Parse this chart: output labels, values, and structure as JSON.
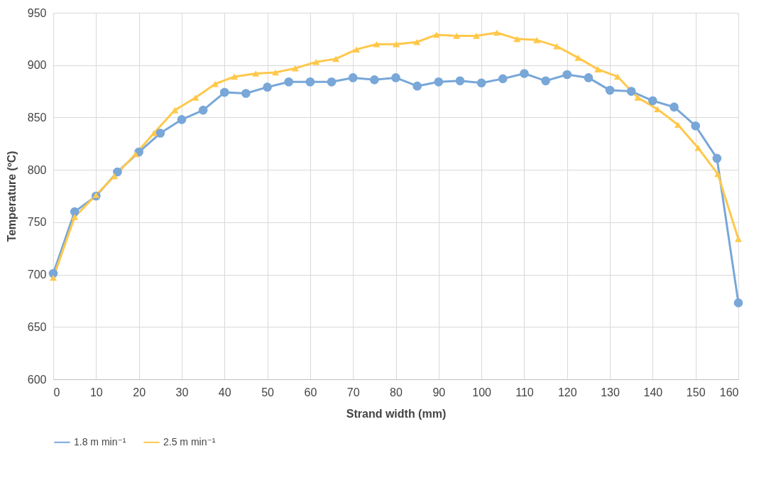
{
  "chart_data": {
    "type": "line",
    "xlabel": "Strand width (mm)",
    "ylabel": "Temperature (ºC)",
    "xlim": [
      0,
      160
    ],
    "xticks": [
      0,
      10,
      20,
      30,
      40,
      50,
      60,
      70,
      80,
      90,
      100,
      110,
      120,
      130,
      140,
      150,
      160
    ],
    "ylim": [
      600,
      950
    ],
    "yticks": [
      600,
      650,
      700,
      750,
      800,
      850,
      900,
      950
    ],
    "grid": true,
    "legend": "bottom",
    "series": [
      {
        "name": "1.8 m min⁻¹",
        "color": "#78a7d8",
        "marker": "circle",
        "x": [
          0,
          5,
          10,
          15,
          20,
          25,
          30,
          35,
          40,
          45,
          50,
          55,
          60,
          65,
          70,
          75,
          80,
          85,
          90,
          95,
          100,
          105,
          110,
          115,
          120,
          125,
          130,
          135,
          140,
          145,
          150,
          155,
          160
        ],
        "values": [
          701,
          760,
          775,
          798,
          817,
          835,
          848,
          857,
          874,
          873,
          879,
          884,
          884,
          884,
          888,
          886,
          888,
          880,
          884,
          885,
          883,
          887,
          892,
          885,
          891,
          888,
          876,
          875,
          866,
          860,
          842,
          811,
          673
        ]
      },
      {
        "name": "2.5 m min⁻¹",
        "color": "#ffc84b",
        "marker": "triangle",
        "x": [
          0,
          5,
          10,
          14.3,
          19.2,
          23.5,
          28.4,
          33.2,
          37.8,
          42.3,
          47.3,
          51.9,
          56.5,
          61.4,
          66,
          70.8,
          75.5,
          80.1,
          84.9,
          89.5,
          94.2,
          98.8,
          103.6,
          108.3,
          112.9,
          117.6,
          122.6,
          127.2,
          131.8,
          136.5,
          141.1,
          145.9,
          150.6,
          155.2,
          160
        ],
        "values": [
          697,
          755,
          776,
          794,
          815,
          835,
          857,
          869,
          882,
          889,
          892,
          893,
          897,
          903,
          906,
          915,
          920,
          920,
          922,
          929,
          928,
          928,
          931,
          925,
          924,
          918,
          907,
          896,
          889,
          869,
          858,
          843,
          821,
          796,
          734
        ]
      }
    ]
  }
}
